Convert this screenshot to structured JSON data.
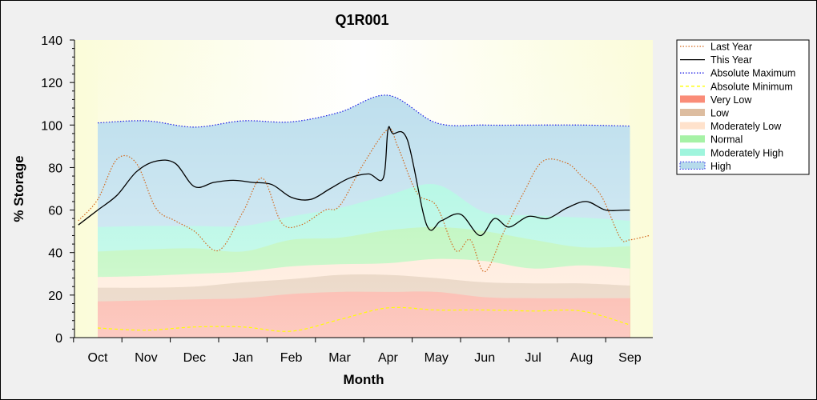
{
  "chart_data": {
    "type": "area",
    "title": "Q1R001",
    "xlabel": "Month",
    "ylabel": "% Storage",
    "ylim": [
      0,
      140
    ],
    "yticks": [
      0,
      20,
      40,
      60,
      80,
      100,
      120,
      140
    ],
    "categories": [
      "Oct",
      "Nov",
      "Dec",
      "Jan",
      "Feb",
      "Mar",
      "Apr",
      "May",
      "Jun",
      "Jul",
      "Aug",
      "Sep"
    ],
    "grid": false,
    "legend_position": "right",
    "band_x": [
      0,
      1,
      2,
      3,
      4,
      5,
      6,
      7,
      8,
      9,
      10,
      11
    ],
    "bands": [
      {
        "name": "Very Low",
        "color": "#fa8c78",
        "top": [
          17,
          17.5,
          18,
          18.5,
          20.5,
          21.5,
          21.5,
          21.5,
          19,
          18.5,
          18.5,
          18.5
        ]
      },
      {
        "name": "Low",
        "color": "#ddbda0",
        "top": [
          23.5,
          23.5,
          24,
          26,
          27.5,
          29.5,
          29.5,
          28,
          26,
          25.5,
          25.5,
          24.5
        ]
      },
      {
        "name": "Moderately Low",
        "color": "#ffe2cc",
        "top": [
          28.5,
          29,
          30,
          31,
          33.5,
          34.5,
          35,
          37,
          36,
          32.5,
          34,
          32.5
        ]
      },
      {
        "name": "Normal",
        "color": "#a6f2a6",
        "top": [
          40.5,
          41.5,
          42,
          40.5,
          46,
          47,
          50.5,
          52,
          50,
          46,
          42.5,
          43
        ]
      },
      {
        "name": "Moderately High",
        "color": "#9ff5dd",
        "top": [
          52,
          52.5,
          52.5,
          52.5,
          57,
          61,
          67,
          72,
          59,
          57.5,
          56.5,
          55
        ]
      },
      {
        "name": "High",
        "color": "#b6dbeb",
        "top": [
          101,
          102,
          99,
          102,
          101.5,
          106,
          114,
          101,
          100,
          100,
          100,
          99.5
        ]
      }
    ],
    "lines": [
      {
        "name": "Last Year",
        "color": "#d2691e",
        "style": "dotted",
        "x": [
          -0.4,
          0,
          0.4,
          0.8,
          1.2,
          1.6,
          2.0,
          2.5,
          3.0,
          3.4,
          3.8,
          4.2,
          4.7,
          5.0,
          5.5,
          6.0,
          6.2,
          6.6,
          7.0,
          7.4,
          7.7,
          8.0,
          8.4,
          8.8,
          9.2,
          9.7,
          10.0,
          10.4,
          10.8,
          11.0,
          11.4
        ],
        "y": [
          55,
          65,
          84,
          82,
          61,
          55,
          50,
          41,
          59,
          75,
          54,
          53,
          60,
          62,
          82,
          98,
          90,
          68,
          62,
          41,
          46,
          31,
          50,
          68,
          83,
          82,
          76,
          67,
          47,
          46,
          48
        ]
      },
      {
        "name": "This Year",
        "color": "#000000",
        "style": "solid",
        "x": [
          -0.4,
          0,
          0.4,
          0.8,
          1.2,
          1.6,
          2.0,
          2.4,
          2.8,
          3.2,
          3.6,
          4.0,
          4.4,
          4.8,
          5.2,
          5.6,
          5.9,
          6.0,
          6.1,
          6.4,
          6.8,
          7.1,
          7.5,
          7.9,
          8.2,
          8.5,
          8.9,
          9.3,
          9.7,
          10.1,
          10.5,
          10.9,
          11.0
        ],
        "y": [
          53,
          60,
          67,
          78,
          83,
          82,
          71,
          73,
          74,
          73,
          72,
          66,
          65,
          70,
          75,
          77,
          75,
          98,
          96,
          93,
          53,
          55,
          58,
          48,
          56,
          52,
          57,
          56,
          61,
          64,
          60,
          60,
          60
        ]
      },
      {
        "name": "Absolute Maximum",
        "color": "#1e1ee6",
        "style": "dotted",
        "x": [
          0,
          1,
          2,
          3,
          4,
          5,
          6,
          7,
          8,
          9,
          10,
          11
        ],
        "y": [
          101,
          102,
          99,
          102,
          101.5,
          106,
          114,
          101,
          100,
          100,
          100,
          99.5
        ]
      },
      {
        "name": "Absolute Minimum",
        "color": "#ffff00",
        "style": "dashed",
        "x": [
          0,
          1,
          2,
          3,
          4,
          5,
          6,
          7,
          8,
          9,
          10,
          11
        ],
        "y": [
          4.5,
          3.5,
          5,
          5,
          3,
          8.5,
          14,
          13,
          13,
          12.5,
          12.5,
          6
        ]
      }
    ],
    "legend": [
      {
        "label": "Last Year",
        "kind": "line",
        "color": "#d2691e",
        "style": "dotted"
      },
      {
        "label": "This Year",
        "kind": "line",
        "color": "#000000",
        "style": "solid"
      },
      {
        "label": "Absolute Maximum",
        "kind": "line",
        "color": "#1e1ee6",
        "style": "dotted"
      },
      {
        "label": "Absolute Minimum",
        "kind": "line",
        "color": "#ffff00",
        "style": "dashed"
      },
      {
        "label": "Very Low",
        "kind": "area",
        "color": "#fa8c78"
      },
      {
        "label": "Low",
        "kind": "area",
        "color": "#ddbda0"
      },
      {
        "label": "Moderately Low",
        "kind": "area",
        "color": "#ffe2cc"
      },
      {
        "label": "Normal",
        "kind": "area",
        "color": "#a6f2a6"
      },
      {
        "label": "Moderately High",
        "kind": "area",
        "color": "#9ff5dd"
      },
      {
        "label": "High",
        "kind": "area",
        "color": "#b6dbeb",
        "border": "#1e1ee6"
      }
    ]
  }
}
